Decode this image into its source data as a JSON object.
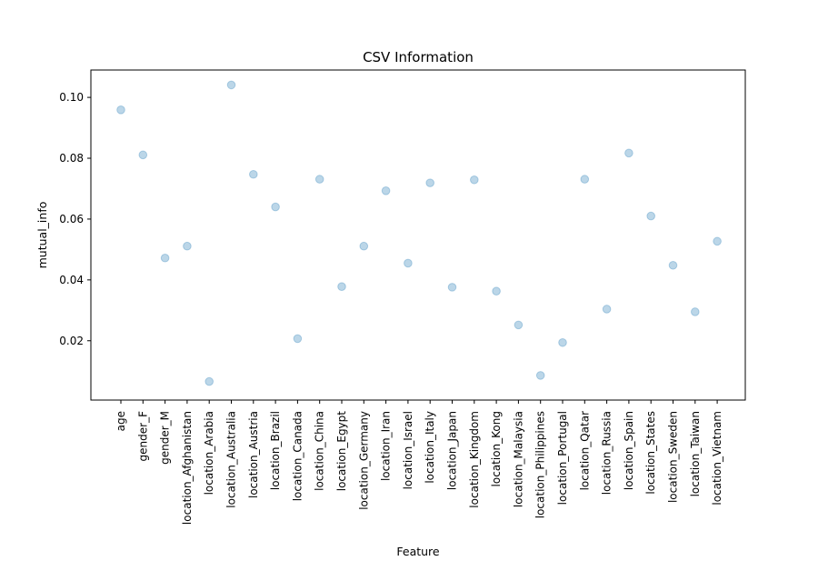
{
  "chart_data": {
    "type": "scatter",
    "title": "CSV Information",
    "xlabel": "Feature",
    "ylabel": "mutual_info",
    "ylim": [
      0.0005,
      0.109
    ],
    "yticks": [
      "0.02",
      "0.04",
      "0.06",
      "0.08",
      "0.10"
    ],
    "marker_color": "#1f77b4",
    "marker_alpha": 0.3,
    "grid": false,
    "categories": [
      "age",
      "gender_F",
      "gender_M",
      "location_Afghanistan",
      "location_Arabia",
      "location_Australia",
      "location_Austria",
      "location_Brazil",
      "location_Canada",
      "location_China",
      "location_Egypt",
      "location_Germany",
      "location_Iran",
      "location_Israel",
      "location_Italy",
      "location_Japan",
      "location_Kingdom",
      "location_Kong",
      "location_Malaysia",
      "location_Philippines",
      "location_Portugal",
      "location_Qatar",
      "location_Russia",
      "location_Spain",
      "location_States",
      "location_Sweden",
      "location_Taiwan",
      "location_Vietnam"
    ],
    "values": [
      0.0959,
      0.0811,
      0.0472,
      0.0511,
      0.0066,
      0.1041,
      0.0747,
      0.064,
      0.0207,
      0.0731,
      0.0378,
      0.0511,
      0.0693,
      0.0455,
      0.0719,
      0.0376,
      0.0729,
      0.0363,
      0.0252,
      0.0086,
      0.0194,
      0.0731,
      0.0304,
      0.0817,
      0.061,
      0.0448,
      0.0295,
      0.0527
    ]
  }
}
